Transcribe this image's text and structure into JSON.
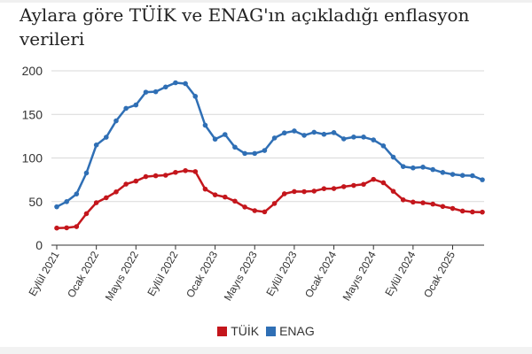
{
  "chart_data": {
    "type": "line",
    "title": "Aylara göre TÜİK ve ENAG'ın açıkladığı enflasyon verileri",
    "xlabel": "",
    "ylabel": "",
    "ylim": [
      0,
      200
    ],
    "yticks": [
      "0",
      "50",
      "100",
      "150",
      "200"
    ],
    "xtick_labels": [
      "Eylül 2021",
      "Ocak 2022",
      "Mayıs 2022",
      "Eylül 2022",
      "Ocak 2023",
      "Mayıs 2023",
      "Eylül 2023",
      "Ocak 2024",
      "Mayıs 2024",
      "Eylül 2024",
      "Ocak 2025"
    ],
    "grid": "horizontal",
    "legend_position": "bottom",
    "x": [
      "2021-09",
      "2021-10",
      "2021-11",
      "2021-12",
      "2022-01",
      "2022-02",
      "2022-03",
      "2022-04",
      "2022-05",
      "2022-06",
      "2022-07",
      "2022-08",
      "2022-09",
      "2022-10",
      "2022-11",
      "2022-12",
      "2023-01",
      "2023-02",
      "2023-03",
      "2023-04",
      "2023-05",
      "2023-06",
      "2023-07",
      "2023-08",
      "2023-09",
      "2023-10",
      "2023-11",
      "2023-12",
      "2024-01",
      "2024-02",
      "2024-03",
      "2024-04",
      "2024-05",
      "2024-06",
      "2024-07",
      "2024-08",
      "2024-09",
      "2024-10",
      "2024-11",
      "2024-12",
      "2025-01",
      "2025-02",
      "2025-03",
      "2025-04"
    ],
    "series": [
      {
        "name": "TÜİK",
        "color": "#c4161c",
        "values": [
          19.6,
          19.9,
          21.3,
          36.1,
          48.7,
          54.4,
          61.1,
          70.0,
          73.5,
          78.6,
          79.6,
          80.2,
          83.5,
          85.5,
          84.4,
          64.3,
          57.7,
          55.2,
          50.5,
          43.7,
          39.6,
          38.2,
          47.8,
          58.9,
          61.5,
          61.4,
          62.0,
          64.8,
          64.9,
          67.1,
          68.5,
          69.8,
          75.5,
          71.6,
          61.8,
          52.0,
          49.4,
          48.6,
          47.1,
          44.4,
          42.1,
          39.1,
          38.1,
          37.9
        ]
      },
      {
        "name": "ENAG",
        "color": "#2f6fb5",
        "values": [
          44.0,
          49.9,
          58.7,
          82.8,
          114.9,
          123.8,
          142.6,
          156.9,
          160.8,
          175.5,
          176.0,
          181.4,
          186.3,
          185.3,
          170.7,
          137.6,
          121.6,
          126.9,
          112.4,
          105.2,
          105.2,
          108.6,
          122.9,
          128.7,
          131.0,
          126.0,
          129.5,
          127.2,
          129.1,
          121.9,
          124.0,
          124.0,
          120.7,
          113.9,
          101.0,
          90.2,
          88.6,
          89.5,
          86.7,
          83.4,
          81.2,
          80.0,
          79.7,
          75.0
        ]
      }
    ]
  }
}
